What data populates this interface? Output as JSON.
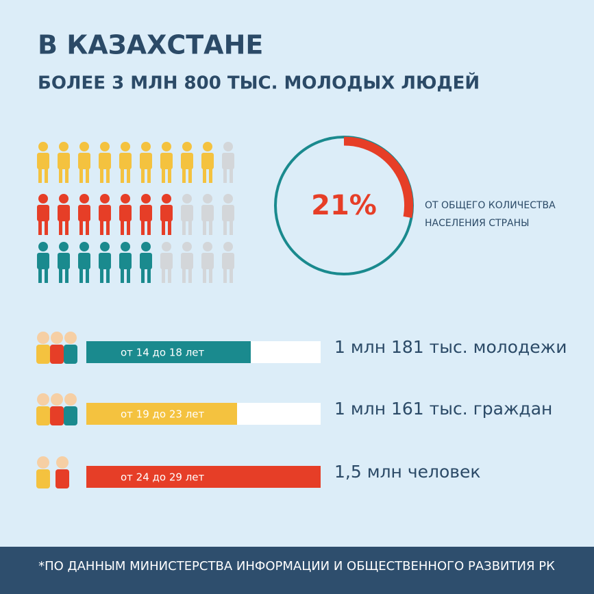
{
  "header": {
    "title": "В КАЗАХСТАНЕ",
    "subtitle": "БОЛЕЕ 3 МЛН 800 ТЫС. МОЛОДЫХ ЛЮДЕЙ"
  },
  "share": {
    "value": "21%",
    "caption": [
      "ОТ ОБЩЕГО КОЛИЧЕСТВА",
      "НАСЕЛЕНИЯ СТРАНЫ"
    ]
  },
  "groups": [
    {
      "age": "от 14 до 18 лет",
      "count": "1 млн 181 тыс. молодежи"
    },
    {
      "age": "от 19 до 23 лет",
      "count": "1 млн 161 тыс. граждан"
    },
    {
      "age": "от 24 до 29 лет",
      "count": "1,5 млн человек"
    }
  ],
  "footer": "*ПО ДАННЫМ МИНИСТЕРСТВА ИНФОРМАЦИИ И ОБЩЕСТВЕННОГО РАЗВИТИЯ РК"
}
